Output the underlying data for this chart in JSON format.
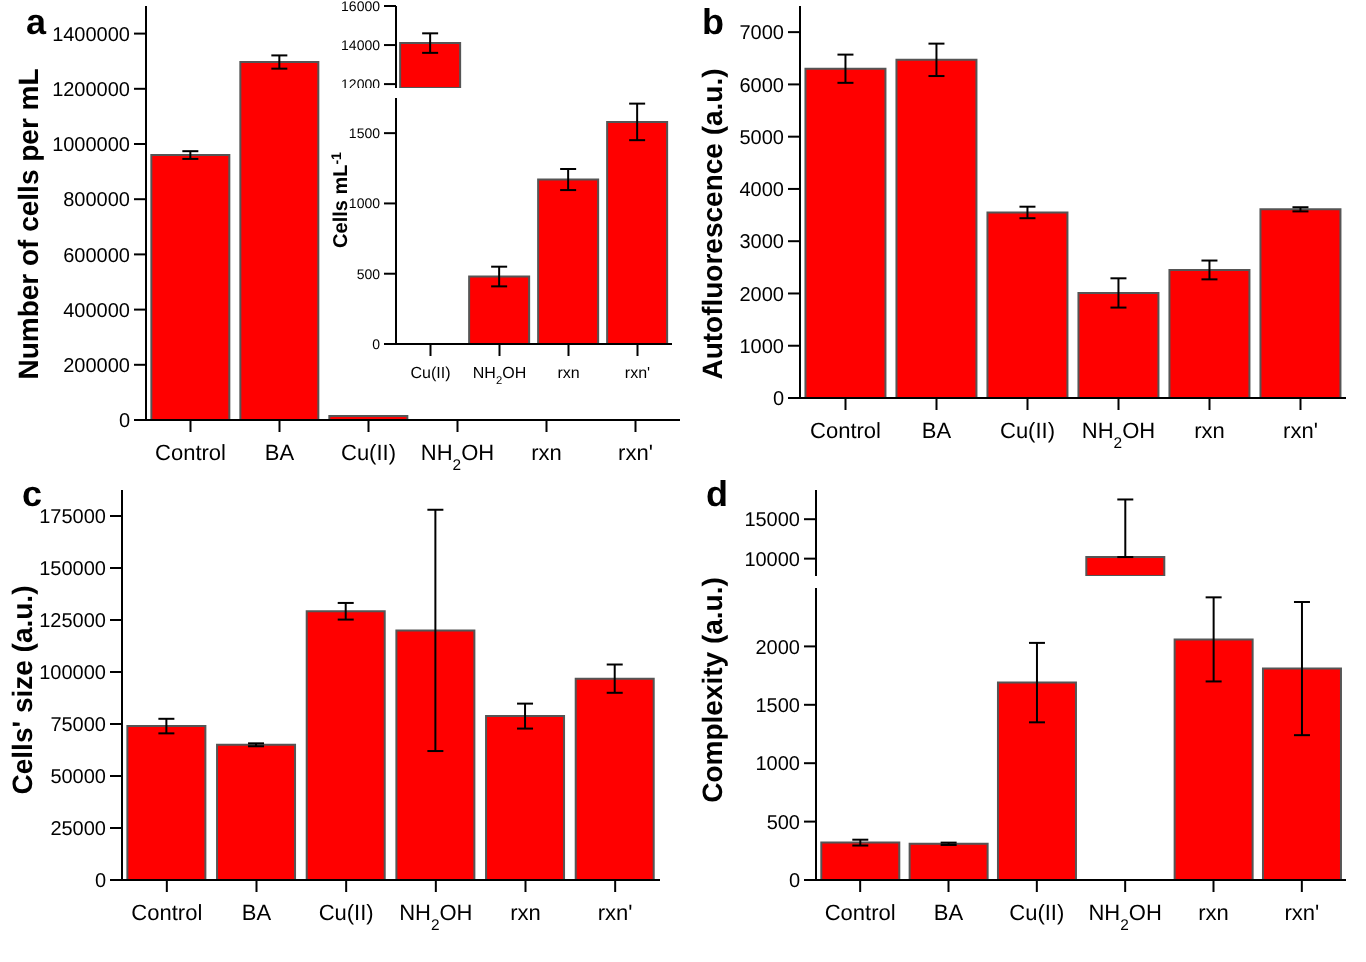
{
  "chart_data": [
    {
      "type": "bar",
      "title": "a",
      "ylabel": "Number of cells per mL",
      "categories": [
        "Control",
        "BA",
        "Cu(II)",
        "NH$_{2}$OH",
        "rxn",
        "rxn'"
      ],
      "values": [
        960000,
        1297000,
        14100,
        null,
        null,
        null
      ],
      "errors": [
        14000,
        24000,
        null,
        null,
        null,
        null
      ],
      "color": "#ff0000",
      "ylim": [
        0,
        1500000
      ],
      "yticks": [
        0,
        200000,
        400000,
        600000,
        800000,
        1000000,
        1200000,
        1400000
      ]
    },
    {
      "type": "bar",
      "categories": [
        null
      ],
      "values": [
        14100
      ],
      "errors": [
        500
      ],
      "color": "#ff0000",
      "ylim": [
        11800,
        16000
      ],
      "yticks": [
        12000,
        14000,
        16000
      ],
      "tick_labels": "y"
    },
    {
      "type": "bar",
      "ylabel": "Cells mL$^{-1}$",
      "categories": [
        "Cu(II)",
        "NH$_{2}$OH",
        "rxn",
        "rxn'"
      ],
      "values": [
        null,
        480,
        1170,
        1580
      ],
      "errors": [
        null,
        70,
        75,
        130
      ],
      "color": "#ff0000",
      "ylim": [
        0,
        1750
      ],
      "yticks": [
        0,
        500,
        1000,
        1500
      ]
    },
    {
      "type": "bar",
      "title": "b",
      "ylabel": "Autofluorescence (a.u.)",
      "categories": [
        "Control",
        "BA",
        "Cu(II)",
        "NH$_{2}$OH",
        "rxn",
        "rxn'"
      ],
      "values": [
        6300,
        6470,
        3550,
        2010,
        2450,
        3610
      ],
      "errors": [
        270,
        310,
        110,
        280,
        180,
        40
      ],
      "color": "#ff0000",
      "ylim": [
        0,
        7500
      ],
      "yticks": [
        0,
        1000,
        2000,
        3000,
        4000,
        5000,
        6000,
        7000
      ]
    },
    {
      "type": "bar",
      "title": "c",
      "ylabel": "Cells' size (a.u.)",
      "categories": [
        "Control",
        "BA",
        "Cu(II)",
        "NH$_{2}$OH",
        "rxn",
        "rxn'"
      ],
      "values": [
        74000,
        65000,
        129200,
        120000,
        78800,
        96800
      ],
      "errors": [
        3500,
        700,
        4000,
        58000,
        6000,
        6800
      ],
      "color": "#ff0000",
      "ylim": [
        0,
        187500
      ],
      "yticks": [
        0,
        25000,
        50000,
        75000,
        100000,
        125000,
        150000,
        175000
      ]
    },
    {
      "type": "bar",
      "title": "d",
      "categories": [
        null,
        null,
        null,
        null,
        null,
        null
      ],
      "values": [
        null,
        null,
        null,
        10200,
        null,
        null
      ],
      "errors": [
        null,
        null,
        null,
        [
          10200,
          17500
        ],
        null,
        null
      ],
      "color": "#ff0000",
      "ylim": [
        7800,
        18700
      ],
      "yticks": [
        10000,
        15000
      ],
      "tick_labels": "y"
    },
    {
      "type": "bar",
      "ylabel": "Complexity (a.u.)",
      "categories": [
        "Control",
        "BA",
        "Cu(II)",
        "NH$_{2}$OH",
        "rxn",
        "rxn'"
      ],
      "values": [
        320,
        310,
        1690,
        null,
        2060,
        1810
      ],
      "errors": [
        25,
        10,
        340,
        null,
        360,
        570
      ],
      "color": "#ff0000",
      "ylim": [
        0,
        2500
      ],
      "yticks": [
        0,
        500,
        1000,
        1500,
        2000
      ]
    }
  ]
}
